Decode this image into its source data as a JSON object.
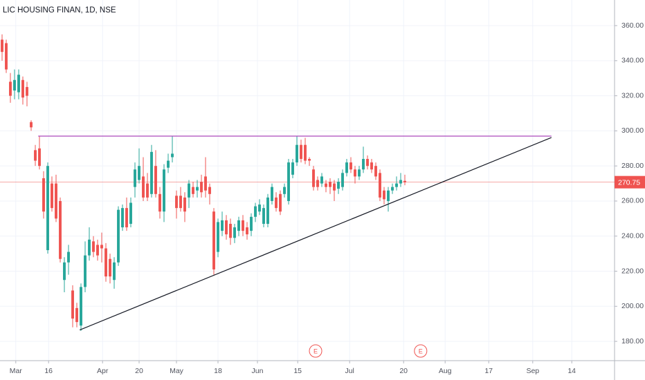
{
  "chart_data": {
    "type": "candlestick",
    "title": "LIC HOUSING FINAN, 1D, NSE",
    "up_color": "#26a69a",
    "down_color": "#ef5350",
    "grid": true,
    "xlim": [
      -0.5,
      147.5
    ],
    "ylim": [
      169,
      374.6
    ],
    "xticks": [
      {
        "value": 3.3,
        "label": "Mar"
      },
      {
        "value": 11.2,
        "label": "16"
      },
      {
        "value": 24.2,
        "label": "Apr"
      },
      {
        "value": 33,
        "label": "20"
      },
      {
        "value": 42,
        "label": "May"
      },
      {
        "value": 52,
        "label": "18"
      },
      {
        "value": 61.5,
        "label": "Jun"
      },
      {
        "value": 71.2,
        "label": "15"
      },
      {
        "value": 83.7,
        "label": "Jul"
      },
      {
        "value": 96.7,
        "label": "20"
      },
      {
        "value": 106.7,
        "label": "Aug"
      },
      {
        "value": 117.2,
        "label": "17"
      },
      {
        "value": 127.8,
        "label": "Sep"
      },
      {
        "value": 137.2,
        "label": "14"
      }
    ],
    "yticks": [
      {
        "value": 180,
        "label": "180.00"
      },
      {
        "value": 200,
        "label": "200.00"
      },
      {
        "value": 220,
        "label": "220.00"
      },
      {
        "value": 240,
        "label": "240.00"
      },
      {
        "value": 260,
        "label": "260.00"
      },
      {
        "value": 280,
        "label": "280.00"
      },
      {
        "value": 300,
        "label": "300.00"
      },
      {
        "value": 320,
        "label": "320.00"
      },
      {
        "value": 340,
        "label": "340.00"
      },
      {
        "value": 360,
        "label": "360.00"
      }
    ],
    "x": [
      0,
      1,
      2,
      3,
      4,
      5,
      6,
      7,
      8,
      9,
      10,
      11,
      12,
      13,
      14,
      15,
      16,
      17,
      18,
      19,
      20,
      21,
      22,
      23,
      24,
      25,
      26,
      27,
      28,
      29,
      30,
      31,
      32,
      33,
      34,
      35,
      36,
      37,
      38,
      39,
      40,
      41,
      42,
      43,
      44,
      45,
      46,
      47,
      48,
      49,
      50,
      51,
      52,
      53,
      54,
      55,
      56,
      57,
      58,
      59,
      60,
      61,
      62,
      63,
      64,
      65,
      66,
      67,
      68,
      69,
      70,
      71,
      72,
      73,
      74,
      75,
      76,
      77,
      78,
      79,
      80,
      81,
      82,
      83,
      84,
      85,
      86,
      87,
      88,
      89,
      90,
      91,
      92,
      93,
      94,
      95,
      96,
      97
    ],
    "open": [
      352,
      350,
      328,
      323,
      322,
      329,
      325,
      305,
      289,
      290,
      273,
      232,
      270,
      270,
      260,
      215,
      225,
      209,
      199,
      189,
      211,
      229,
      237,
      235,
      235,
      233,
      227,
      215,
      225,
      245,
      256,
      247,
      268,
      272,
      274,
      270,
      264,
      280,
      264,
      254,
      279,
      285,
      263,
      263,
      262,
      262,
      268,
      266,
      271,
      274,
      268,
      254,
      231,
      243,
      249,
      247,
      239,
      243,
      249,
      245,
      243,
      251,
      254,
      247,
      247,
      260,
      262,
      264,
      264,
      260,
      275,
      282,
      292,
      292,
      284,
      278,
      272,
      270,
      270,
      271,
      270,
      267,
      268,
      276,
      282,
      278,
      274,
      278,
      284,
      282,
      280,
      276,
      266,
      260,
      266,
      268,
      270,
      271.5
    ],
    "high": [
      355,
      352,
      333,
      335,
      335,
      331,
      328,
      306,
      292,
      297,
      277,
      282,
      274,
      275,
      262,
      228,
      235,
      212,
      202,
      213,
      237,
      245,
      240,
      238,
      242,
      236,
      230,
      228,
      257,
      258,
      262,
      262,
      282,
      290,
      285,
      276,
      292,
      289,
      268,
      281,
      287,
      297,
      266,
      268,
      265,
      272,
      271,
      272,
      275,
      285,
      270,
      256,
      250,
      254,
      252,
      250,
      247,
      251,
      252,
      248,
      253,
      259,
      261,
      258,
      264,
      270,
      265,
      266,
      270,
      284,
      284,
      297,
      295,
      296,
      285,
      280,
      274,
      276,
      272,
      273,
      272,
      273,
      278,
      284,
      285,
      280,
      280,
      291,
      286,
      284,
      282,
      278,
      268,
      268,
      270,
      274,
      276,
      275
    ],
    "low": [
      340,
      333,
      316,
      318,
      318,
      315,
      314,
      300,
      280,
      278,
      250,
      230,
      254,
      248,
      225,
      208,
      218,
      188,
      188,
      186,
      208,
      226,
      228,
      226,
      225,
      214,
      213,
      210,
      223,
      243,
      243,
      245,
      262,
      270,
      260,
      260,
      262,
      262,
      250,
      248,
      276,
      282,
      250,
      254,
      248,
      256,
      262,
      262,
      262,
      262,
      258,
      218,
      228,
      240,
      238,
      235,
      236,
      240,
      240,
      238,
      240,
      248,
      252,
      245,
      245,
      258,
      254,
      252,
      262,
      258,
      273,
      280,
      282,
      281,
      280,
      266,
      266,
      268,
      265,
      264,
      260,
      264,
      266,
      274,
      276,
      270,
      272,
      276,
      278,
      276,
      272,
      260,
      258,
      254,
      264,
      266,
      268,
      269
    ],
    "close": [
      345,
      335,
      320,
      329,
      332,
      319,
      320,
      302,
      283,
      280,
      254,
      280,
      256,
      250,
      227,
      225,
      231,
      193,
      191,
      211,
      229,
      238,
      231,
      229,
      233,
      217,
      217,
      225,
      255,
      256,
      245,
      259,
      278,
      280,
      262,
      262,
      288,
      264,
      254,
      278,
      283,
      287,
      256,
      256,
      254,
      270,
      264,
      268,
      265,
      266,
      264,
      221,
      248,
      249,
      241,
      239,
      245,
      249,
      243,
      241,
      251,
      257,
      258,
      256,
      262,
      268,
      256,
      254,
      268,
      282,
      282,
      292,
      284,
      283,
      283,
      268,
      268,
      274,
      268,
      268,
      266,
      271,
      276,
      282,
      278,
      274,
      278,
      284,
      280,
      278,
      274,
      262,
      261,
      266,
      268,
      270,
      272,
      270.75
    ],
    "last_price": 270.75,
    "lines": [
      {
        "x": [
          8.7,
          132.3
        ],
        "y": [
          297,
          297
        ],
        "color": "#ab47bc"
      },
      {
        "x": [
          18.7,
          132.3
        ],
        "y": [
          186.5,
          296.2
        ],
        "color": "#131722"
      }
    ],
    "events": [
      {
        "x": 75.5,
        "label": "E"
      },
      {
        "x": 100.8,
        "label": "E"
      }
    ]
  }
}
